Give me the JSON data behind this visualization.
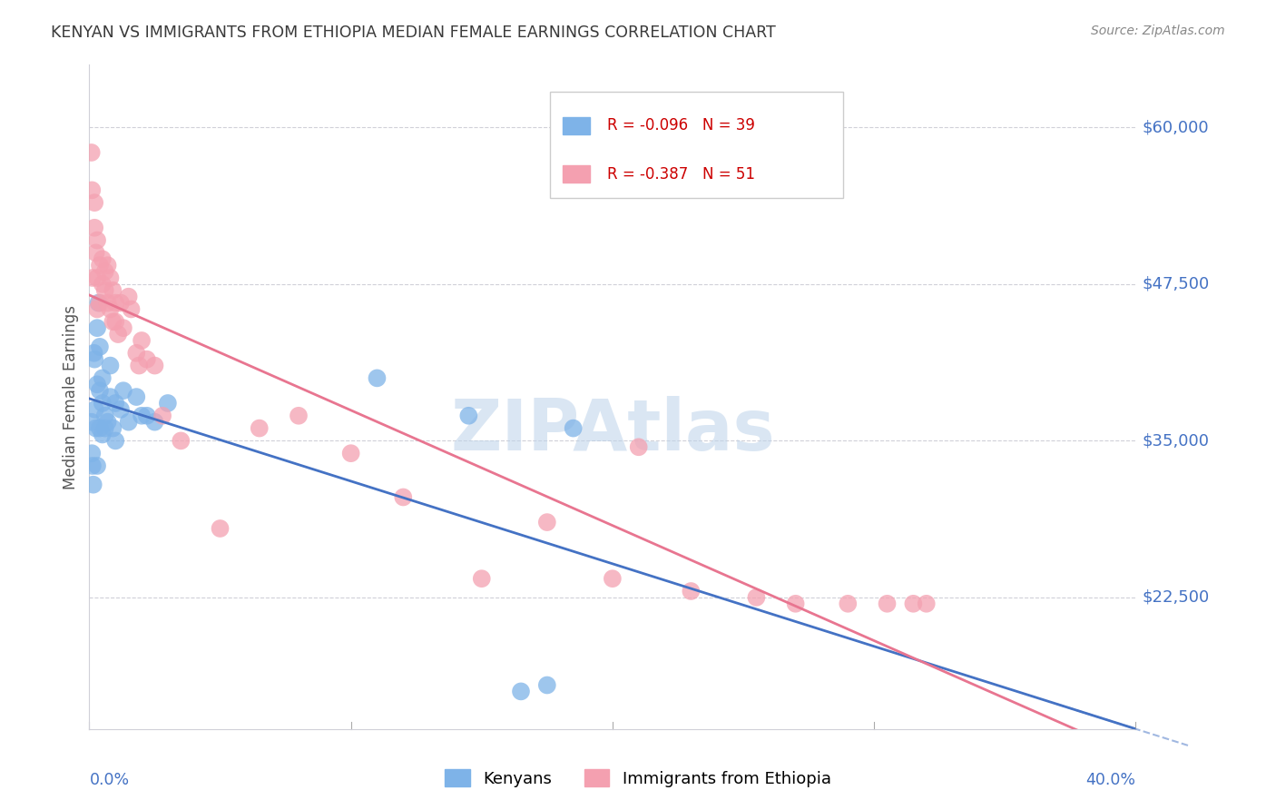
{
  "title": "KENYAN VS IMMIGRANTS FROM ETHIOPIA MEDIAN FEMALE EARNINGS CORRELATION CHART",
  "source": "Source: ZipAtlas.com",
  "ylabel": "Median Female Earnings",
  "ytick_values": [
    22500,
    35000,
    47500,
    60000
  ],
  "ytick_labels": [
    "$22,500",
    "$35,000",
    "$47,500",
    "$60,000"
  ],
  "xtick_values": [
    0.0,
    0.1,
    0.2,
    0.3,
    0.4
  ],
  "xlim": [
    0.0,
    0.4
  ],
  "ylim": [
    12000,
    65000
  ],
  "legend_r1": "R = -0.096",
  "legend_n1": "N = 39",
  "legend_r2": "R = -0.387",
  "legend_n2": "N = 51",
  "legend_label1": "Kenyans",
  "legend_label2": "Immigrants from Ethiopia",
  "watermark": "ZIPAtlas",
  "blue_scatter_color": "#7eb3e8",
  "pink_scatter_color": "#f4a0b0",
  "blue_line_color": "#4472c4",
  "pink_line_color": "#e87590",
  "axis_color": "#4472c4",
  "title_color": "#3a3a3a",
  "grid_color": "#d0d0d8",
  "bg_color": "#ffffff",
  "kenyans_x": [
    0.0008,
    0.001,
    0.0012,
    0.0015,
    0.0018,
    0.002,
    0.0022,
    0.0025,
    0.003,
    0.003,
    0.003,
    0.0035,
    0.004,
    0.004,
    0.004,
    0.005,
    0.005,
    0.005,
    0.006,
    0.006,
    0.007,
    0.008,
    0.008,
    0.009,
    0.01,
    0.01,
    0.012,
    0.013,
    0.015,
    0.018,
    0.02,
    0.022,
    0.025,
    0.03,
    0.11,
    0.145,
    0.165,
    0.175,
    0.185
  ],
  "kenyans_y": [
    36500,
    34000,
    33000,
    31500,
    42000,
    41500,
    37500,
    36000,
    44000,
    39500,
    33000,
    46000,
    42500,
    39000,
    36000,
    40000,
    38000,
    35500,
    37000,
    36000,
    36500,
    41000,
    38500,
    36000,
    38000,
    35000,
    37500,
    39000,
    36500,
    38500,
    37000,
    37000,
    36500,
    38000,
    40000,
    37000,
    15000,
    15500,
    36000
  ],
  "ethiopia_x": [
    0.0008,
    0.001,
    0.0012,
    0.002,
    0.002,
    0.0025,
    0.003,
    0.003,
    0.003,
    0.004,
    0.004,
    0.005,
    0.005,
    0.006,
    0.006,
    0.007,
    0.007,
    0.008,
    0.008,
    0.009,
    0.009,
    0.01,
    0.01,
    0.011,
    0.012,
    0.013,
    0.015,
    0.016,
    0.018,
    0.019,
    0.02,
    0.022,
    0.025,
    0.028,
    0.035,
    0.05,
    0.065,
    0.08,
    0.1,
    0.12,
    0.15,
    0.175,
    0.2,
    0.21,
    0.23,
    0.255,
    0.27,
    0.29,
    0.305,
    0.315,
    0.32
  ],
  "ethiopia_y": [
    58000,
    55000,
    48000,
    54000,
    52000,
    50000,
    51000,
    48000,
    45500,
    49000,
    46000,
    49500,
    47500,
    48500,
    47000,
    49000,
    46000,
    48000,
    45500,
    47000,
    44500,
    46000,
    44500,
    43500,
    46000,
    44000,
    46500,
    45500,
    42000,
    41000,
    43000,
    41500,
    41000,
    37000,
    35000,
    28000,
    36000,
    37000,
    34000,
    30500,
    24000,
    28500,
    24000,
    34500,
    23000,
    22500,
    22000,
    22000,
    22000,
    22000,
    22000
  ]
}
